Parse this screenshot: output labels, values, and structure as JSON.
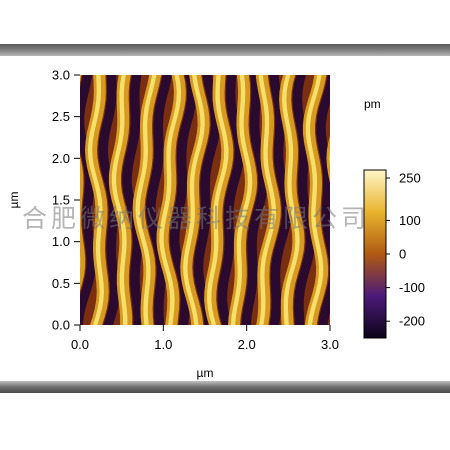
{
  "chart_data": {
    "type": "heatmap",
    "title": "",
    "xlabel": "µm",
    "ylabel": "µm",
    "xlim": [
      0.0,
      3.0
    ],
    "ylim": [
      0.0,
      3.0
    ],
    "x_ticks": [
      "0.0",
      "1.0",
      "2.0",
      "3.0"
    ],
    "y_ticks": [
      "0.0",
      "0.5",
      "1.0",
      "1.5",
      "2.0",
      "2.5",
      "3.0"
    ],
    "colorbar": {
      "label": "pm",
      "range": [
        -250,
        250
      ],
      "ticks": [
        "250",
        "100",
        "0",
        "-100",
        "-200"
      ],
      "colors": [
        "#0c0417",
        "#4c1a7a",
        "#b05a12",
        "#e8b42e",
        "#fff6c8"
      ]
    },
    "stripe_period_um": 0.29,
    "stripe_count": 10
  },
  "watermark": "合肥微纳仪器科技有限公司"
}
